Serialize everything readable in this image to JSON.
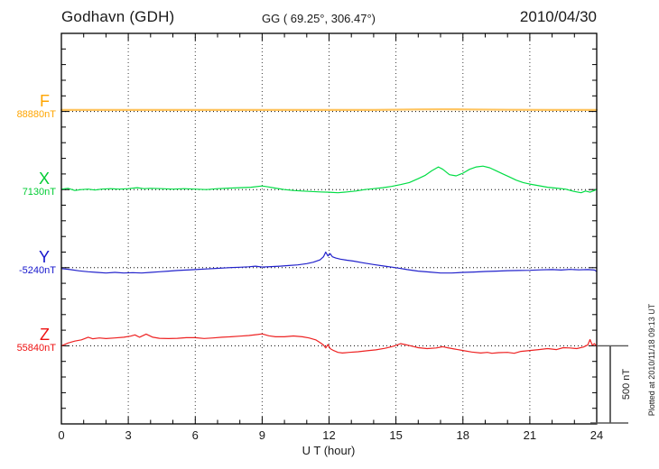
{
  "header": {
    "station": "Godhavn (GDH)",
    "coordinates": "GG ( 69.25°, 306.47°)",
    "date": "2010/04/30"
  },
  "axis": {
    "x_label": "U T (hour)",
    "x_tick_labels": [
      "0",
      "3",
      "6",
      "9",
      "12",
      "15",
      "18",
      "21",
      "24"
    ],
    "x_range_hours": [
      0,
      24
    ],
    "minor_tick_hours": 1,
    "major_tick_hours": 3,
    "y_division_nT": 500,
    "y_minor_tick_nT": 100
  },
  "scale_bar": {
    "label": "500 nT",
    "nT": 500
  },
  "footer_note": "Plotted at 2010/11/18 09:13 UT",
  "chart_data": {
    "type": "line",
    "title": "Godhavn (GDH) magnetogram 2010/04/30",
    "xlabel": "U T (hour)",
    "x_unit": "hour",
    "xlim": [
      0,
      24
    ],
    "y_unit": "nT",
    "grid": "dotted vertical every 3 h, dotted horizontal baseline per component",
    "points_format": "[hour_UT, offset_nT_from_baseline]",
    "series": [
      {
        "id": "F",
        "label": "F",
        "value_label": "88880nT",
        "baseline_nT": 88880,
        "color": "#FFA500",
        "line_color": "#FFC45E",
        "points": [
          [
            0,
            10
          ],
          [
            2,
            10
          ],
          [
            4,
            10
          ],
          [
            6,
            10
          ],
          [
            8,
            10
          ],
          [
            10,
            10
          ],
          [
            12,
            10
          ],
          [
            14,
            10
          ],
          [
            16,
            13
          ],
          [
            17,
            14
          ],
          [
            18,
            13
          ],
          [
            20,
            11
          ],
          [
            22,
            10
          ],
          [
            24,
            10
          ]
        ]
      },
      {
        "id": "X",
        "label": "X",
        "value_label": "7130nT",
        "baseline_nT": 7130,
        "color": "#00CC33",
        "line_color": "#00DD44",
        "points": [
          [
            0,
            3
          ],
          [
            0.3,
            8
          ],
          [
            0.6,
            -6
          ],
          [
            0.9,
            0
          ],
          [
            1.2,
            3
          ],
          [
            1.5,
            -3
          ],
          [
            1.8,
            3
          ],
          [
            2.2,
            6
          ],
          [
            2.6,
            3
          ],
          [
            3,
            6
          ],
          [
            3.4,
            12
          ],
          [
            3.7,
            6
          ],
          [
            4,
            8
          ],
          [
            4.5,
            6
          ],
          [
            5,
            3
          ],
          [
            5.5,
            6
          ],
          [
            6,
            3
          ],
          [
            6.5,
            0
          ],
          [
            7,
            6
          ],
          [
            7.5,
            9
          ],
          [
            8,
            12
          ],
          [
            8.5,
            15
          ],
          [
            9,
            23
          ],
          [
            9.3,
            17
          ],
          [
            9.6,
            9
          ],
          [
            10,
            0
          ],
          [
            10.4,
            -6
          ],
          [
            10.8,
            -9
          ],
          [
            11.2,
            -12
          ],
          [
            11.6,
            -15
          ],
          [
            12,
            -17
          ],
          [
            12.4,
            -20
          ],
          [
            12.8,
            -15
          ],
          [
            13.2,
            -9
          ],
          [
            13.6,
            0
          ],
          [
            14,
            6
          ],
          [
            14.4,
            12
          ],
          [
            14.8,
            20
          ],
          [
            15.2,
            32
          ],
          [
            15.6,
            45
          ],
          [
            16,
            70
          ],
          [
            16.3,
            90
          ],
          [
            16.6,
            120
          ],
          [
            16.9,
            145
          ],
          [
            17.1,
            130
          ],
          [
            17.4,
            95
          ],
          [
            17.7,
            88
          ],
          [
            18,
            105
          ],
          [
            18.3,
            130
          ],
          [
            18.6,
            145
          ],
          [
            18.9,
            150
          ],
          [
            19.2,
            140
          ],
          [
            19.5,
            120
          ],
          [
            19.8,
            100
          ],
          [
            20.1,
            80
          ],
          [
            20.4,
            60
          ],
          [
            20.7,
            45
          ],
          [
            21,
            35
          ],
          [
            21.4,
            25
          ],
          [
            21.8,
            15
          ],
          [
            22.2,
            9
          ],
          [
            22.6,
            3
          ],
          [
            23,
            -12
          ],
          [
            23.3,
            -20
          ],
          [
            23.5,
            -9
          ],
          [
            23.7,
            -17
          ],
          [
            23.9,
            -6
          ],
          [
            24,
            3
          ]
        ]
      },
      {
        "id": "Y",
        "label": "Y",
        "value_label": "-5240nT",
        "baseline_nT": -5240,
        "color": "#1515CC",
        "line_color": "#2222CC",
        "points": [
          [
            0,
            -6
          ],
          [
            0.4,
            -12
          ],
          [
            0.8,
            -20
          ],
          [
            1.2,
            -26
          ],
          [
            1.6,
            -30
          ],
          [
            2,
            -34
          ],
          [
            2.4,
            -30
          ],
          [
            2.8,
            -34
          ],
          [
            3.2,
            -32
          ],
          [
            3.6,
            -34
          ],
          [
            4,
            -30
          ],
          [
            4.4,
            -26
          ],
          [
            4.8,
            -22
          ],
          [
            5.2,
            -18
          ],
          [
            5.6,
            -15
          ],
          [
            6,
            -12
          ],
          [
            6.5,
            -8
          ],
          [
            7,
            -4
          ],
          [
            7.5,
            0
          ],
          [
            8,
            3
          ],
          [
            8.4,
            6
          ],
          [
            8.7,
            10
          ],
          [
            9,
            4
          ],
          [
            9.4,
            7
          ],
          [
            9.8,
            10
          ],
          [
            10.2,
            14
          ],
          [
            10.6,
            18
          ],
          [
            11,
            26
          ],
          [
            11.3,
            35
          ],
          [
            11.6,
            50
          ],
          [
            11.75,
            70
          ],
          [
            11.85,
            100
          ],
          [
            11.95,
            75
          ],
          [
            12.05,
            90
          ],
          [
            12.15,
            70
          ],
          [
            12.3,
            62
          ],
          [
            12.5,
            55
          ],
          [
            12.8,
            48
          ],
          [
            13.1,
            42
          ],
          [
            13.5,
            32
          ],
          [
            14,
            20
          ],
          [
            14.5,
            10
          ],
          [
            15,
            0
          ],
          [
            15.5,
            -12
          ],
          [
            16,
            -22
          ],
          [
            16.5,
            -28
          ],
          [
            17,
            -34
          ],
          [
            17.5,
            -34
          ],
          [
            18,
            -30
          ],
          [
            18.5,
            -28
          ],
          [
            19,
            -24
          ],
          [
            19.5,
            -22
          ],
          [
            20,
            -19
          ],
          [
            20.5,
            -18
          ],
          [
            21,
            -17
          ],
          [
            21.5,
            -14
          ],
          [
            22,
            -12
          ],
          [
            22.4,
            -15
          ],
          [
            22.8,
            -11
          ],
          [
            23.2,
            -14
          ],
          [
            23.6,
            -12
          ],
          [
            23.9,
            -15
          ],
          [
            24,
            -24
          ]
        ]
      },
      {
        "id": "Z",
        "label": "Z",
        "value_label": "55840nT",
        "baseline_nT": 55840,
        "color": "#EE1111",
        "line_color": "#EE2222",
        "points": [
          [
            0,
            0
          ],
          [
            0.3,
            18
          ],
          [
            0.6,
            30
          ],
          [
            0.9,
            38
          ],
          [
            1.2,
            55
          ],
          [
            1.4,
            45
          ],
          [
            1.7,
            50
          ],
          [
            2,
            46
          ],
          [
            2.4,
            50
          ],
          [
            2.8,
            55
          ],
          [
            3.1,
            62
          ],
          [
            3.3,
            70
          ],
          [
            3.5,
            55
          ],
          [
            3.8,
            75
          ],
          [
            4.1,
            55
          ],
          [
            4.4,
            48
          ],
          [
            4.8,
            46
          ],
          [
            5.2,
            48
          ],
          [
            5.6,
            52
          ],
          [
            6,
            52
          ],
          [
            6.4,
            47
          ],
          [
            6.8,
            50
          ],
          [
            7.2,
            55
          ],
          [
            7.6,
            58
          ],
          [
            8,
            62
          ],
          [
            8.4,
            66
          ],
          [
            8.8,
            72
          ],
          [
            9,
            76
          ],
          [
            9.3,
            64
          ],
          [
            9.6,
            58
          ],
          [
            10,
            58
          ],
          [
            10.4,
            63
          ],
          [
            10.8,
            58
          ],
          [
            11.1,
            50
          ],
          [
            11.4,
            38
          ],
          [
            11.6,
            20
          ],
          [
            11.75,
            5
          ],
          [
            11.85,
            -14
          ],
          [
            11.95,
            8
          ],
          [
            12.05,
            -18
          ],
          [
            12.2,
            -30
          ],
          [
            12.4,
            -42
          ],
          [
            12.6,
            -46
          ],
          [
            12.9,
            -42
          ],
          [
            13.3,
            -38
          ],
          [
            13.7,
            -32
          ],
          [
            14.1,
            -26
          ],
          [
            14.5,
            -16
          ],
          [
            14.8,
            -6
          ],
          [
            15,
            2
          ],
          [
            15.2,
            14
          ],
          [
            15.4,
            8
          ],
          [
            15.7,
            -2
          ],
          [
            16,
            -12
          ],
          [
            16.4,
            -18
          ],
          [
            16.8,
            -14
          ],
          [
            17.1,
            -6
          ],
          [
            17.3,
            -12
          ],
          [
            17.6,
            -20
          ],
          [
            18,
            -30
          ],
          [
            18.4,
            -40
          ],
          [
            18.8,
            -46
          ],
          [
            19.1,
            -42
          ],
          [
            19.3,
            -48
          ],
          [
            19.6,
            -44
          ],
          [
            20,
            -42
          ],
          [
            20.3,
            -48
          ],
          [
            20.6,
            -36
          ],
          [
            21,
            -30
          ],
          [
            21.4,
            -24
          ],
          [
            21.8,
            -18
          ],
          [
            22.2,
            -24
          ],
          [
            22.5,
            -12
          ],
          [
            22.8,
            -14
          ],
          [
            23.1,
            -18
          ],
          [
            23.4,
            -8
          ],
          [
            23.6,
            6
          ],
          [
            23.7,
            40
          ],
          [
            23.8,
            4
          ],
          [
            23.9,
            14
          ],
          [
            24,
            -4
          ]
        ]
      }
    ]
  }
}
